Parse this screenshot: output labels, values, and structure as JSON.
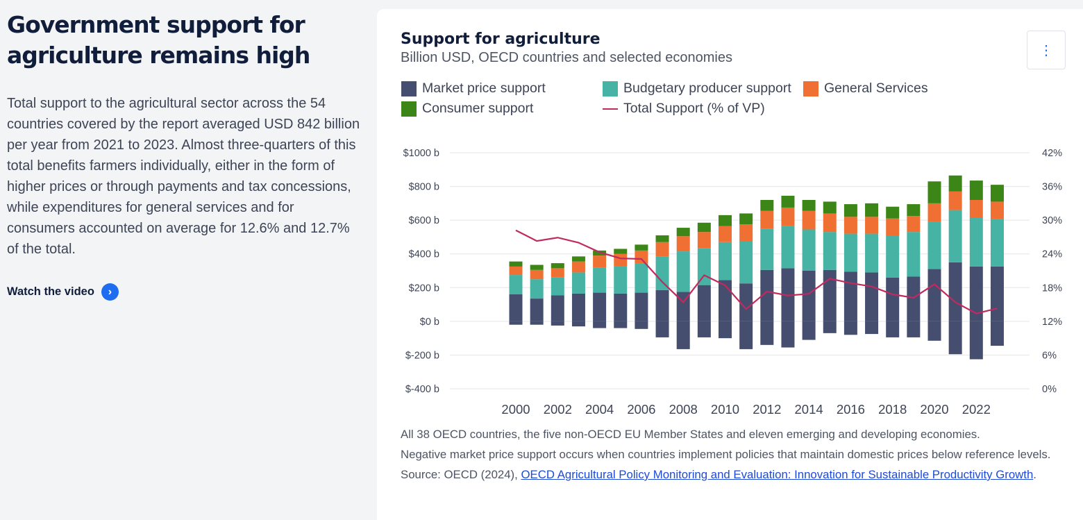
{
  "left": {
    "heading_line1": "Government support for",
    "heading_line2": "agriculture remains high",
    "body": "Total support to the agricultural sector across the 54 countries covered by the report averaged USD 842 billion per year from 2021 to 2023. Almost three-quarters of this total benefits farmers individually, either in the form of higher prices or through payments and tax concessions, while expenditures for general services and for consumers accounted on average for 12.6% and 12.7% of the total.",
    "watch_label": "Watch the video",
    "watch_icon": "chevron-right-icon"
  },
  "card": {
    "menu_icon": "vertical-dots-icon",
    "menu_glyph": "⋮",
    "note1": "All 38 OECD countries, the five non-OECD EU Member States and eleven emerging and developing economies.",
    "note2": "Negative market price support occurs when countries implement policies that maintain domestic prices below reference levels.",
    "source_prefix": "Source: OECD (2024), ",
    "source_link": "OECD Agricultural Policy Monitoring and Evaluation: Innovation for Sustainable Productivity Growth",
    "source_suffix": "."
  },
  "chart_data": {
    "type": "bar",
    "stacked": true,
    "title": "Support for agriculture",
    "subtitle": "Billion USD, OECD countries and selected economies",
    "x": [
      2000,
      2001,
      2002,
      2003,
      2004,
      2005,
      2006,
      2007,
      2008,
      2009,
      2010,
      2011,
      2012,
      2013,
      2014,
      2015,
      2016,
      2017,
      2018,
      2019,
      2020,
      2021,
      2022,
      2023
    ],
    "x_ticks": [
      "2000",
      "2002",
      "2004",
      "2006",
      "2008",
      "2010",
      "2012",
      "2014",
      "2016",
      "2018",
      "2020",
      "2022"
    ],
    "y_left_ticks": [
      "$1000 b",
      "$800 b",
      "$600 b",
      "$400 b",
      "$200 b",
      "$0 b",
      "$-200 b",
      "$-400 b"
    ],
    "y_right_ticks": [
      "42%",
      "36%",
      "30%",
      "24%",
      "18%",
      "12%",
      "6%",
      "0%"
    ],
    "ylim_left": [
      -400,
      1000
    ],
    "ylim_right": [
      0,
      42
    ],
    "grid": true,
    "legend_position": "top-left",
    "series": [
      {
        "name": "Market price support",
        "color": "#454e6e",
        "type": "bar",
        "positive_part": true,
        "values": [
          160,
          135,
          155,
          165,
          170,
          165,
          170,
          185,
          175,
          215,
          245,
          225,
          305,
          315,
          300,
          305,
          295,
          290,
          260,
          265,
          310,
          350,
          325,
          325
        ]
      },
      {
        "name": "Market price support (negative)",
        "color": "#454e6e",
        "type": "bar",
        "negative_part": true,
        "values": [
          -20,
          -20,
          -25,
          -30,
          -40,
          -40,
          -45,
          -95,
          -165,
          -95,
          -100,
          -165,
          -140,
          -155,
          -110,
          -70,
          -80,
          -75,
          -95,
          -95,
          -115,
          -195,
          -225,
          -145
        ]
      },
      {
        "name": "Budgetary producer support",
        "color": "#46b3a5",
        "type": "bar",
        "values": [
          115,
          115,
          105,
          125,
          150,
          160,
          175,
          200,
          240,
          220,
          225,
          250,
          245,
          250,
          245,
          225,
          225,
          230,
          250,
          265,
          280,
          310,
          290,
          280
        ]
      },
      {
        "name": "General Services",
        "color": "#f07033",
        "type": "bar",
        "values": [
          50,
          55,
          55,
          65,
          70,
          75,
          75,
          85,
          90,
          95,
          95,
          100,
          105,
          110,
          110,
          110,
          100,
          100,
          100,
          95,
          110,
          110,
          105,
          105
        ]
      },
      {
        "name": "Consumer support",
        "color": "#3b8616",
        "type": "bar",
        "values": [
          30,
          30,
          30,
          30,
          30,
          30,
          35,
          40,
          50,
          55,
          65,
          65,
          65,
          70,
          65,
          70,
          75,
          80,
          70,
          70,
          130,
          95,
          115,
          100
        ]
      },
      {
        "name": "Total Support (% of VP)",
        "color": "#c02a5e",
        "type": "line",
        "axis": "right",
        "values": [
          28.2,
          26.3,
          26.9,
          26.0,
          24.3,
          23.2,
          23.1,
          19.0,
          15.4,
          20.2,
          18.4,
          14.2,
          17.3,
          16.6,
          16.9,
          19.6,
          18.8,
          18.2,
          16.8,
          16.2,
          18.6,
          15.4,
          13.4,
          14.3
        ]
      }
    ]
  }
}
